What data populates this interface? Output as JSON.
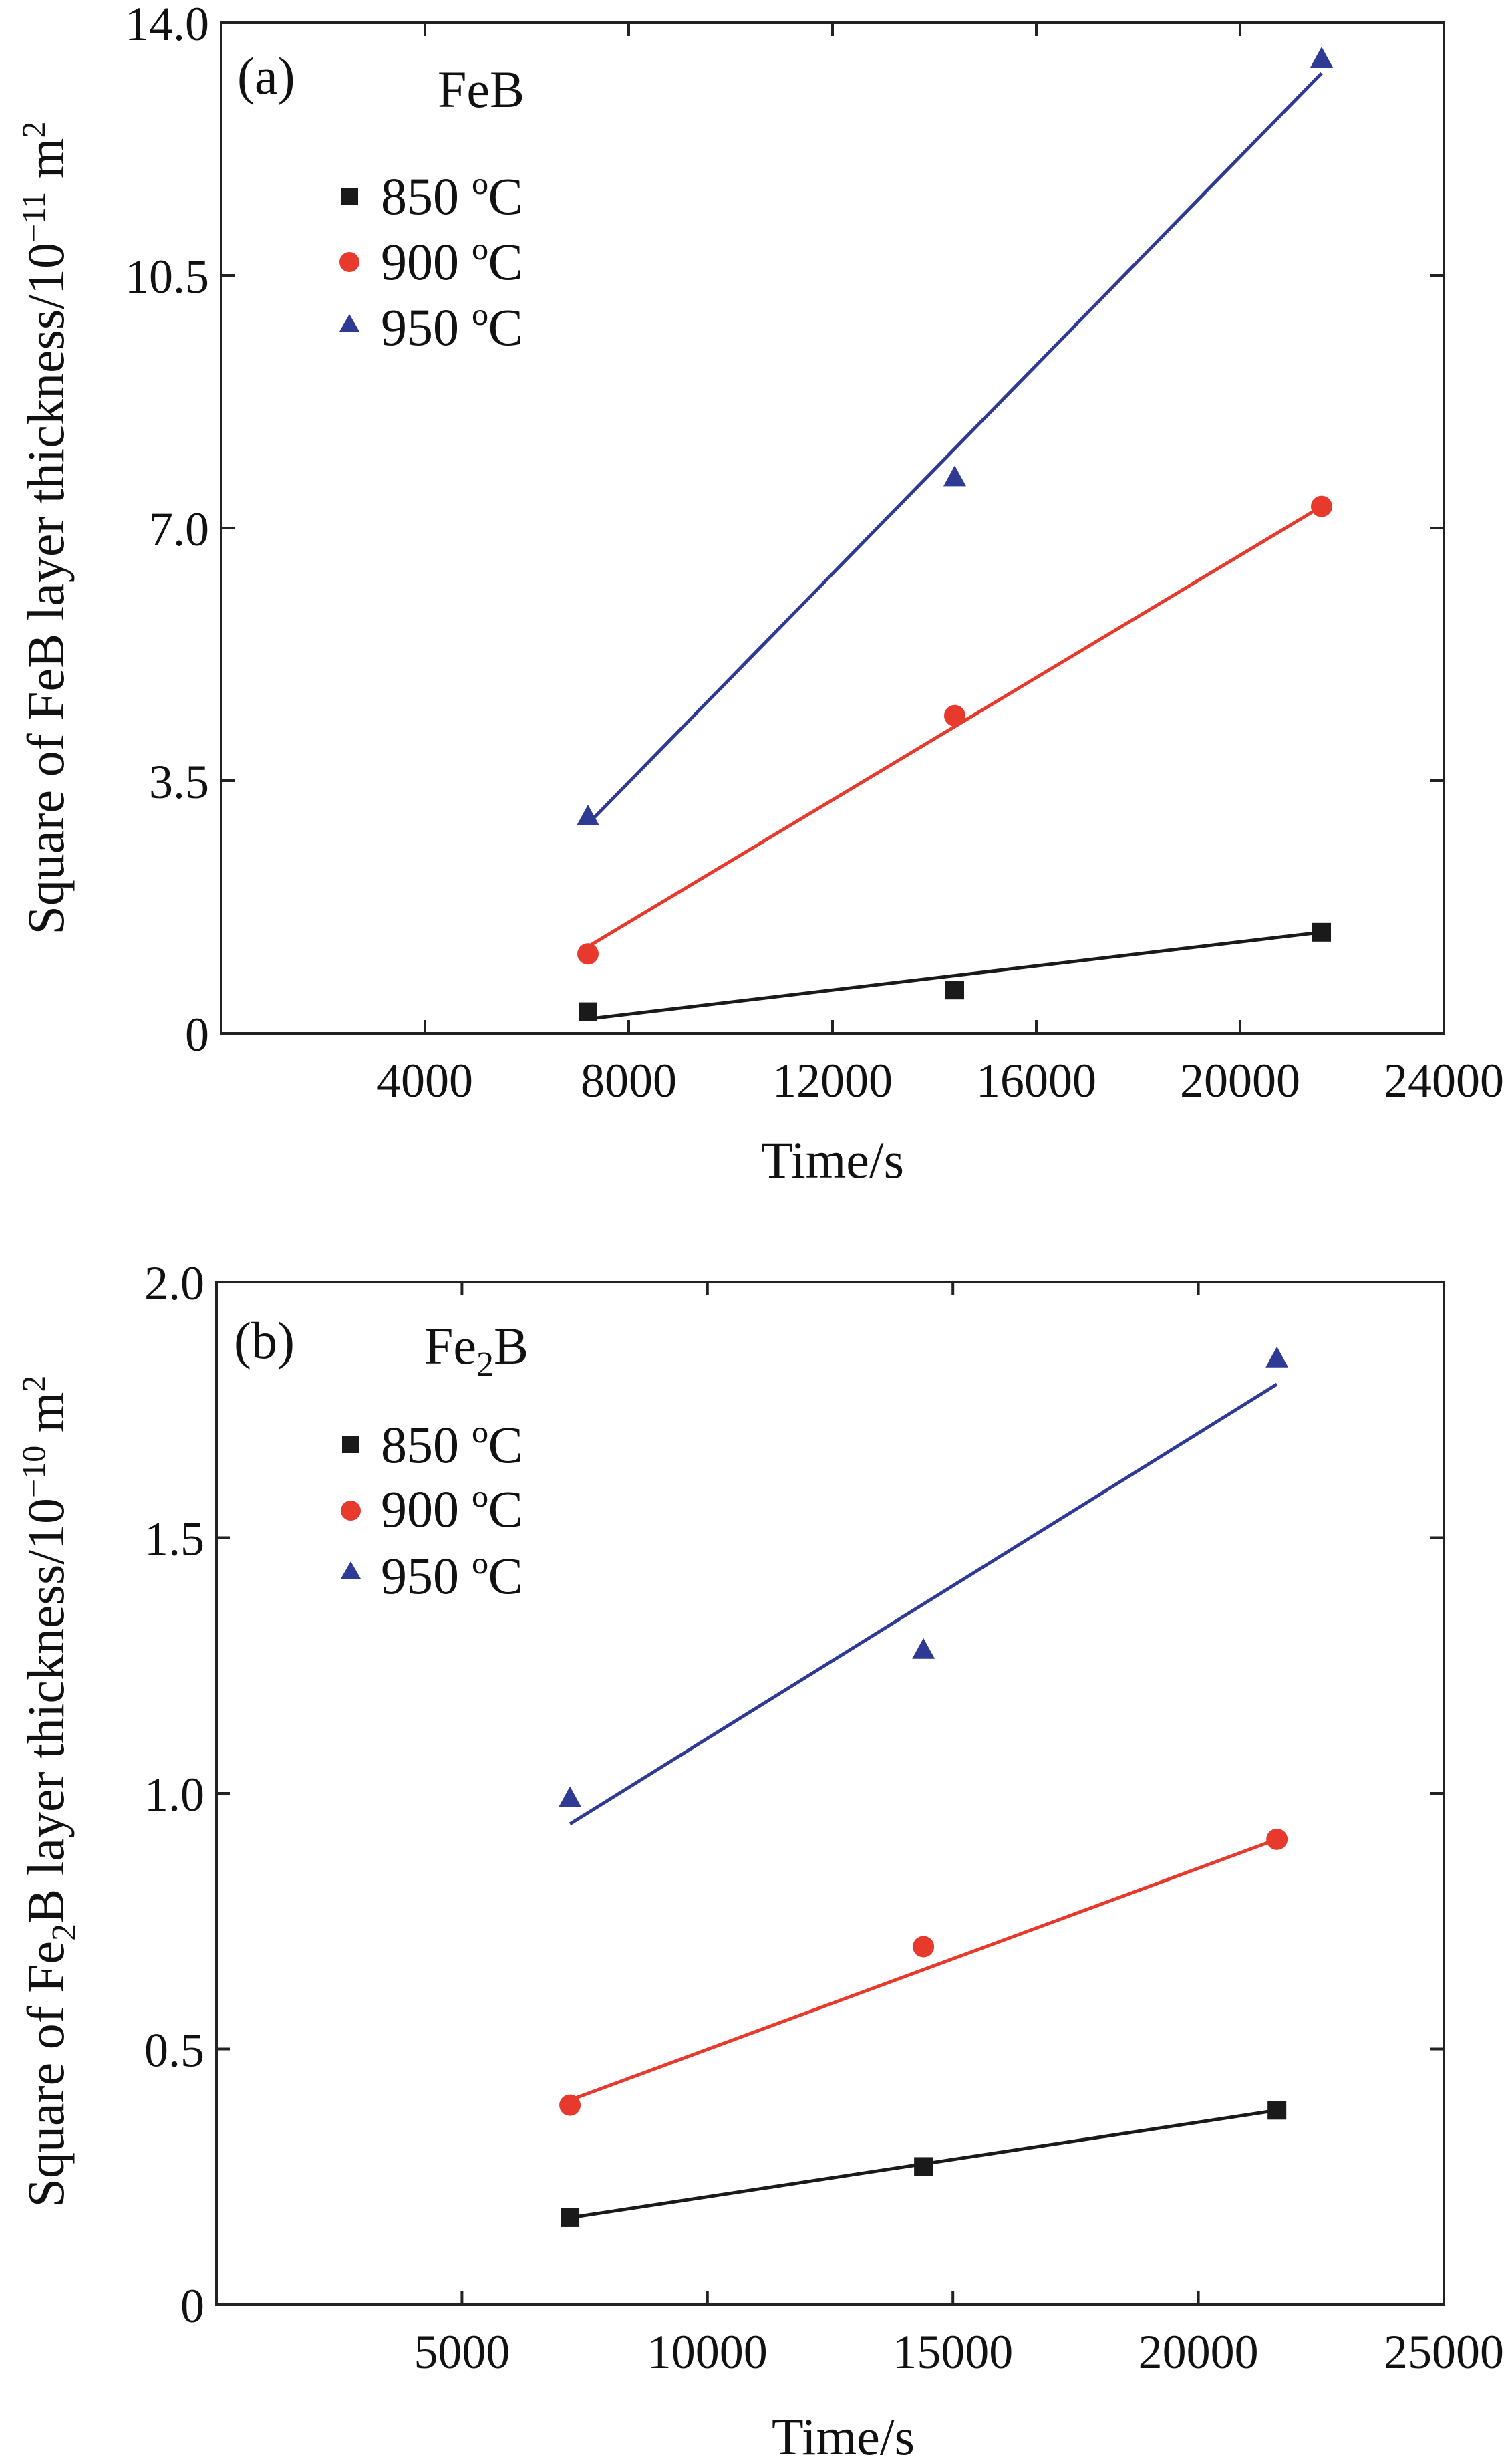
{
  "chart_data": [
    {
      "type": "scatter",
      "panel_tag": "(a)",
      "annotation": "FeB",
      "xlabel": "Time/s",
      "ylabel": "Square of FeB layer thickness/10",
      "ylabel_exponent": "−11",
      "ylabel_unit": "m",
      "ylabel_unit_exponent": "2",
      "xlim": [
        0,
        24000
      ],
      "ylim": [
        0,
        14.0
      ],
      "xticks": [
        4000,
        8000,
        12000,
        16000,
        20000,
        24000
      ],
      "xtick_labels": [
        "4000",
        "8000",
        "12000",
        "16000",
        "20000",
        "24000"
      ],
      "yticks": [
        0,
        3.5,
        7.0,
        10.5,
        14.0
      ],
      "ytick_labels": [
        "0",
        "3.5",
        "7.0",
        "10.5",
        "14.0"
      ],
      "legend_position": "top-left",
      "grid": false,
      "series": [
        {
          "name": "850 ºC",
          "marker": "square",
          "color": "#1a1a1a",
          "x": [
            7200,
            14400,
            21600
          ],
          "y": [
            0.3,
            0.6,
            1.4
          ],
          "fit_x": [
            7200,
            21600
          ],
          "fit_y": [
            0.2,
            1.4
          ]
        },
        {
          "name": "900 ºC",
          "marker": "circle",
          "color": "#e8392d",
          "x": [
            7200,
            14400,
            21600
          ],
          "y": [
            1.1,
            4.4,
            7.3
          ],
          "fit_x": [
            7200,
            21600
          ],
          "fit_y": [
            1.2,
            7.3
          ]
        },
        {
          "name": "950 ºC",
          "marker": "triangle",
          "color": "#2e3a94",
          "x": [
            7200,
            14400,
            21600
          ],
          "y": [
            3.0,
            7.7,
            13.5
          ],
          "fit_x": [
            7200,
            21600
          ],
          "fit_y": [
            2.9,
            13.3
          ]
        }
      ]
    },
    {
      "type": "scatter",
      "panel_tag": "(b)",
      "annotation": "Fe",
      "annotation_sub": "2",
      "annotation_tail": "B",
      "xlabel": "Time/s",
      "ylabel": "Square of Fe",
      "ylabel_sub": "2",
      "ylabel_tail": "B layer thickness/10",
      "ylabel_exponent": "−10",
      "ylabel_unit": "m",
      "ylabel_unit_exponent": "2",
      "xlim": [
        0,
        25000
      ],
      "ylim": [
        0,
        2.0
      ],
      "xticks": [
        5000,
        10000,
        15000,
        20000,
        25000
      ],
      "xtick_labels": [
        "5000",
        "10000",
        "15000",
        "20000",
        "25000"
      ],
      "yticks": [
        0,
        0.5,
        1.0,
        1.5,
        2.0
      ],
      "ytick_labels": [
        "0",
        "0.5",
        "1.0",
        "1.5",
        "2.0"
      ],
      "legend_position": "top-left",
      "grid": false,
      "series": [
        {
          "name": "850 ºC",
          "marker": "square",
          "color": "#1a1a1a",
          "x": [
            7200,
            14400,
            21600
          ],
          "y": [
            0.17,
            0.27,
            0.38
          ],
          "fit_x": [
            7200,
            21600
          ],
          "fit_y": [
            0.17,
            0.38
          ]
        },
        {
          "name": "900 ºC",
          "marker": "circle",
          "color": "#e8392d",
          "x": [
            7200,
            14400,
            21600
          ],
          "y": [
            0.39,
            0.7,
            0.91
          ],
          "fit_x": [
            7200,
            21600
          ],
          "fit_y": [
            0.4,
            0.91
          ]
        },
        {
          "name": "950 ºC",
          "marker": "triangle",
          "color": "#2e3a94",
          "x": [
            7200,
            14400,
            21600
          ],
          "y": [
            0.99,
            1.28,
            1.85
          ],
          "fit_x": [
            7200,
            21600
          ],
          "fit_y": [
            0.94,
            1.8
          ]
        }
      ]
    }
  ]
}
